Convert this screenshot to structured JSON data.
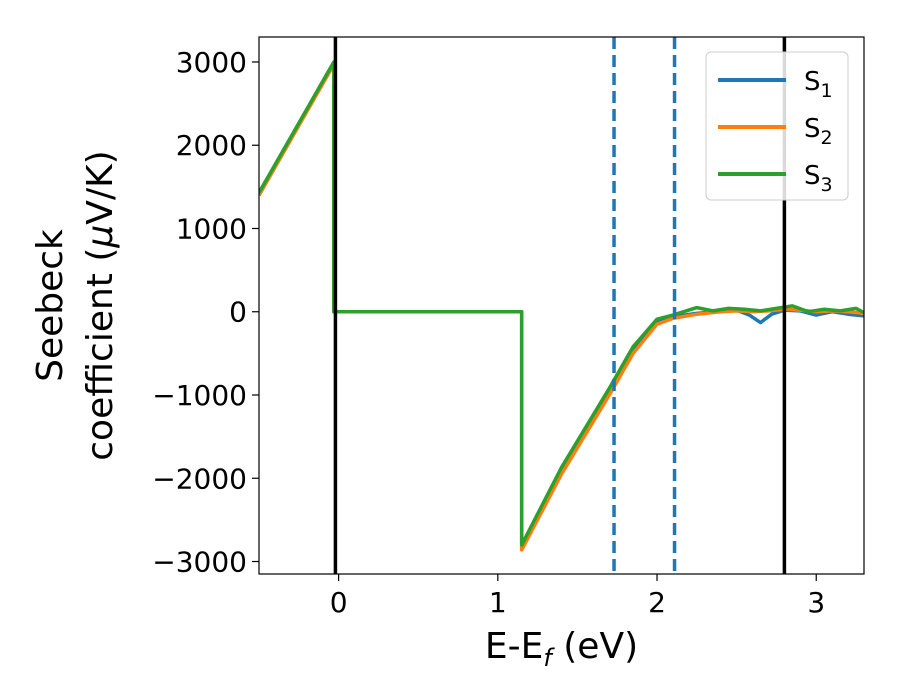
{
  "chart_data": {
    "type": "line",
    "xlabel": "E-E",
    "xlabel_sub": "f",
    "xlabel_unit": " (eV)",
    "ylabel_line1": "Seebeck",
    "ylabel_line2_pre": "coefficient  (",
    "ylabel_line2_mu": "μ",
    "ylabel_line2_post": "V/K)",
    "xlim": [
      -0.5,
      3.3
    ],
    "ylim": [
      -3150,
      3300
    ],
    "xticks": [
      0,
      1,
      2,
      3
    ],
    "xtick_labels": [
      "0",
      "1",
      "2",
      "3"
    ],
    "yticks": [
      -3000,
      -2000,
      -1000,
      0,
      1000,
      2000,
      3000
    ],
    "ytick_labels": [
      "−3000",
      "−2000",
      "−1000",
      "0",
      "1000",
      "2000",
      "3000"
    ],
    "grid": false,
    "legend_position": "top-right",
    "series": [
      {
        "name": "S",
        "sub": "1",
        "color": "#1f77b4",
        "x": [
          -0.5,
          -0.03,
          -0.03,
          1.15,
          1.15,
          1.4,
          1.7,
          1.85,
          2.0,
          2.1,
          2.25,
          2.4,
          2.5,
          2.58,
          2.65,
          2.72,
          2.8,
          2.9,
          3.0,
          3.1,
          3.2,
          3.3
        ],
        "y": [
          1400,
          2980,
          0,
          0,
          -2830,
          -1900,
          -950,
          -450,
          -120,
          -60,
          -20,
          5,
          20,
          -40,
          -130,
          -30,
          20,
          10,
          -40,
          0,
          -30,
          -50
        ]
      },
      {
        "name": "S",
        "sub": "2",
        "color": "#ff7f0e",
        "x": [
          -0.5,
          -0.03,
          -0.03,
          1.15,
          1.15,
          1.4,
          1.7,
          1.85,
          2.0,
          2.1,
          2.25,
          2.4,
          2.5,
          2.6,
          2.7,
          2.8,
          2.9,
          3.0,
          3.1,
          3.2,
          3.3
        ],
        "y": [
          1400,
          2970,
          0,
          0,
          -2860,
          -1950,
          -1000,
          -500,
          -150,
          -80,
          -30,
          0,
          10,
          0,
          10,
          30,
          20,
          0,
          10,
          0,
          -20
        ]
      },
      {
        "name": "S",
        "sub": "3",
        "color": "#2ca02c",
        "x": [
          -0.5,
          -0.03,
          -0.03,
          1.15,
          1.15,
          1.4,
          1.7,
          1.85,
          2.0,
          2.1,
          2.25,
          2.35,
          2.45,
          2.55,
          2.65,
          2.75,
          2.85,
          2.95,
          3.05,
          3.15,
          3.25,
          3.3
        ],
        "y": [
          1430,
          3000,
          0,
          0,
          -2800,
          -1870,
          -920,
          -420,
          -90,
          -40,
          50,
          10,
          40,
          30,
          10,
          40,
          70,
          0,
          30,
          10,
          40,
          -10
        ]
      }
    ],
    "vlines": [
      {
        "x": -0.02,
        "color": "#000000",
        "style": "solid"
      },
      {
        "x": 1.73,
        "color": "#1f77b4",
        "style": "dashed"
      },
      {
        "x": 2.11,
        "color": "#1f77b4",
        "style": "dashed"
      },
      {
        "x": 2.8,
        "color": "#000000",
        "style": "solid"
      }
    ]
  }
}
